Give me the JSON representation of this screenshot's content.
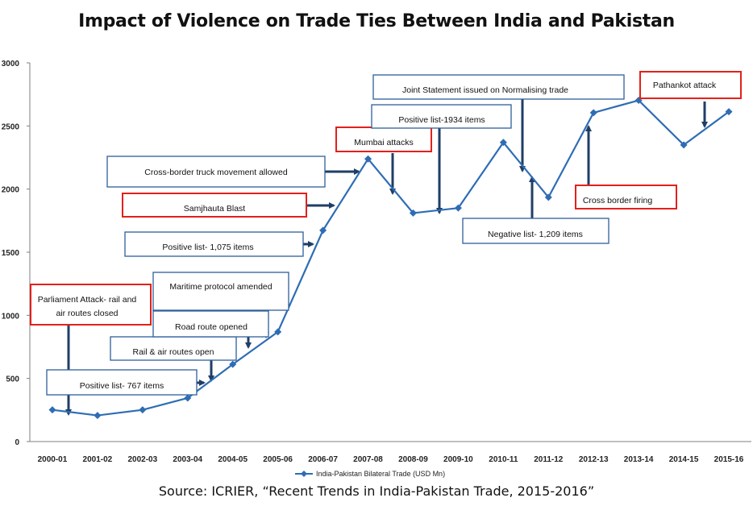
{
  "title": "Impact of Violence on Trade Ties Between India and Pakistan",
  "source": "Source: ICRIER, “Recent Trends in India-Pakistan Trade, 2015-2016”",
  "colors": {
    "line": "#2e6db4",
    "box_blue": "#2e5f9a",
    "box_red": "#e3201b",
    "arrow": "#1f3e66",
    "axis": "#7f7f7f"
  },
  "chart_data": {
    "type": "line",
    "categories": [
      "2000-01",
      "2001-02",
      "2002-03",
      "2003-04",
      "2004-05",
      "2005-06",
      "2006-07",
      "2007-08",
      "2008-09",
      "2009-10",
      "2010-11",
      "2011-12",
      "2012-13",
      "2013-14",
      "2014-15",
      "2015-16"
    ],
    "series": [
      {
        "name": "India-Pakistan Bilateral Trade (USD Mn)",
        "values": [
          251,
          207,
          251,
          345,
          612,
          869,
          1673,
          2239,
          1810,
          1850,
          2370,
          1935,
          2605,
          2703,
          2350,
          2613
        ]
      }
    ],
    "y_ticks": [
      "0",
      "500",
      "1000",
      "1500",
      "2000",
      "2500",
      "3000"
    ],
    "ylim": [
      0,
      3000
    ],
    "legend_position": "bottom",
    "annotations": [
      {
        "text": "Parliament Attack- rail and air routes closed",
        "type": "violence"
      },
      {
        "text": "Positive list- 767 items",
        "type": "trade"
      },
      {
        "text": "Rail & air routes open",
        "type": "trade"
      },
      {
        "text": "Road route opened",
        "type": "trade"
      },
      {
        "text": "Maritime protocol amended",
        "type": "trade"
      },
      {
        "text": "Positive list- 1,075 items",
        "type": "trade"
      },
      {
        "text": "Samjhauta Blast",
        "type": "violence"
      },
      {
        "text": "Cross-border truck movement allowed",
        "type": "trade"
      },
      {
        "text": "Mumbai attacks",
        "type": "violence"
      },
      {
        "text": "Positive list-1934 items",
        "type": "trade"
      },
      {
        "text": "Joint Statement issued on Normalising trade",
        "type": "trade"
      },
      {
        "text": "Negative list- 1,209 items",
        "type": "trade"
      },
      {
        "text": "Cross border firing",
        "type": "violence"
      },
      {
        "text": "Pathankot attack",
        "type": "violence"
      }
    ]
  }
}
